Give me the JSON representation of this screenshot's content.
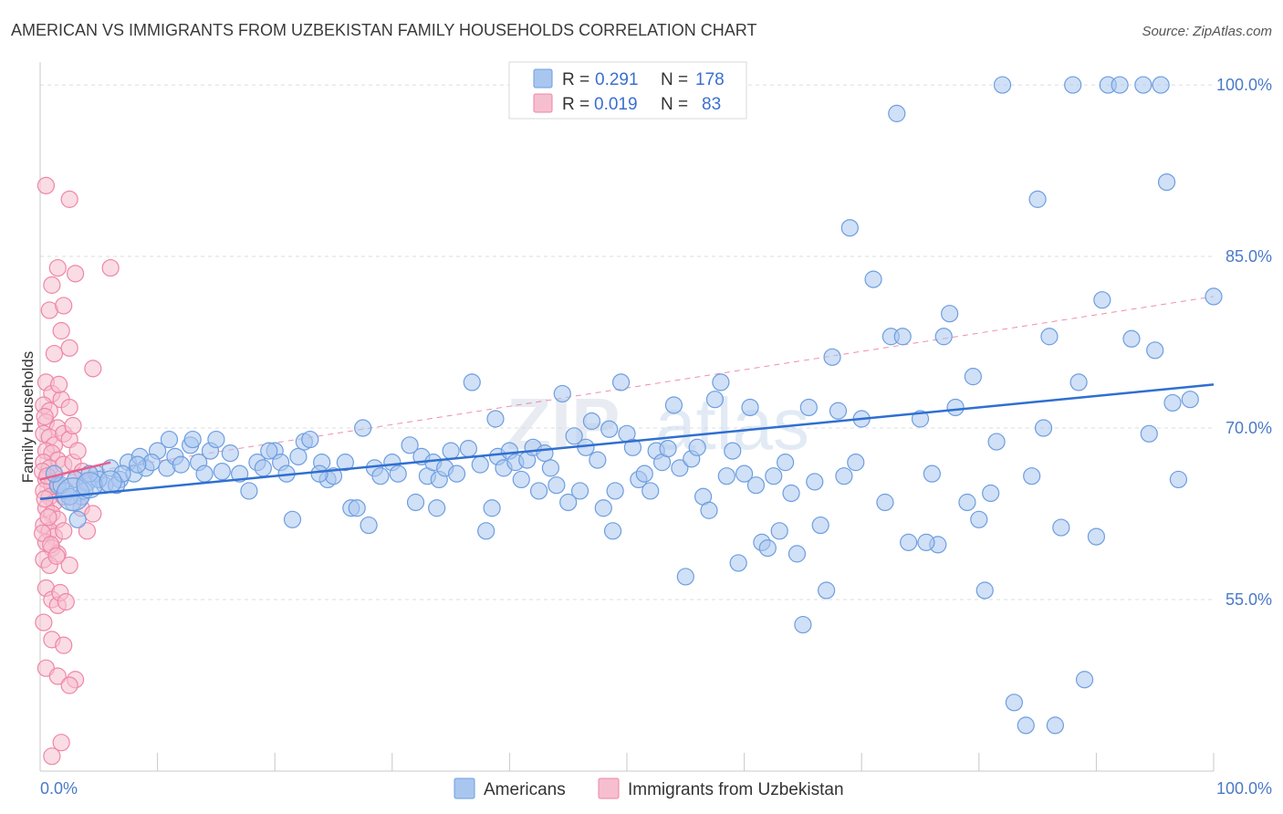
{
  "title": "AMERICAN VS IMMIGRANTS FROM UZBEKISTAN FAMILY HOUSEHOLDS CORRELATION CHART",
  "source": "Source: ZipAtlas.com",
  "watermark": {
    "zip": "ZIP",
    "atlas": "atlas"
  },
  "colors": {
    "blue_fill": "#a9c6ef",
    "blue_stroke": "#6d9ee0",
    "blue_line": "#2f6fd0",
    "pink_fill": "#f6bfd0",
    "pink_stroke": "#ef86a6",
    "pink_line": "#e8608c",
    "grid": "#dcdcdc",
    "tick_text": "#4a7ac8"
  },
  "legend": {
    "row1": {
      "r_label": "R =",
      "r_value": "0.291",
      "n_label": "N =",
      "n_value": "178"
    },
    "row2": {
      "r_label": "R =",
      "r_value": "0.019",
      "n_label": "N =",
      "n_value": "83"
    }
  },
  "chart_data": {
    "type": "scatter",
    "title": "AMERICAN VS IMMIGRANTS FROM UZBEKISTAN FAMILY HOUSEHOLDS CORRELATION CHART",
    "xlabel": "",
    "ylabel": "Family Households",
    "xlim": [
      0,
      100
    ],
    "ylim": [
      40,
      102
    ],
    "x_tick_labels": [
      "0.0%",
      "100.0%"
    ],
    "y_ticks": [
      55,
      70,
      85,
      100
    ],
    "y_tick_labels": [
      "55.0%",
      "70.0%",
      "85.0%",
      "100.0%"
    ],
    "grid": true,
    "legend_position": "top-center",
    "series": [
      {
        "name": "Americans",
        "color": "#a9c6ef",
        "r": 0.291,
        "n": 178,
        "trend": {
          "x": [
            0,
            100
          ],
          "y": [
            63.8,
            73.8
          ]
        },
        "points": [
          [
            1.5,
            65.0
          ],
          [
            2.2,
            64.5
          ],
          [
            3.0,
            65.5
          ],
          [
            3.5,
            64.0
          ],
          [
            4.0,
            65.2
          ],
          [
            4.8,
            66.0
          ],
          [
            5.5,
            65.0
          ],
          [
            6.0,
            66.5
          ],
          [
            6.8,
            65.5
          ],
          [
            7.5,
            67.0
          ],
          [
            8.0,
            66.0
          ],
          [
            8.5,
            67.5
          ],
          [
            9.0,
            66.5
          ],
          [
            10.0,
            68.0
          ],
          [
            10.8,
            66.5
          ],
          [
            11.5,
            67.5
          ],
          [
            12.0,
            66.8
          ],
          [
            12.8,
            68.5
          ],
          [
            13.5,
            67.0
          ],
          [
            14.0,
            66.0
          ],
          [
            14.5,
            68.0
          ],
          [
            15.5,
            66.2
          ],
          [
            16.2,
            67.8
          ],
          [
            17.0,
            66.0
          ],
          [
            17.8,
            64.5
          ],
          [
            18.5,
            67.0
          ],
          [
            19.0,
            66.5
          ],
          [
            20.0,
            68.0
          ],
          [
            20.5,
            67.0
          ],
          [
            21.0,
            66.0
          ],
          [
            22.0,
            67.5
          ],
          [
            22.5,
            68.8
          ],
          [
            23.0,
            69.0
          ],
          [
            24.0,
            67.0
          ],
          [
            24.5,
            65.5
          ],
          [
            25.0,
            65.8
          ],
          [
            26.0,
            67.0
          ],
          [
            26.5,
            63.0
          ],
          [
            27.5,
            70.0
          ],
          [
            28.0,
            61.5
          ],
          [
            28.5,
            66.5
          ],
          [
            29.0,
            65.8
          ],
          [
            30.0,
            67.0
          ],
          [
            30.5,
            66.0
          ],
          [
            31.5,
            68.5
          ],
          [
            32.0,
            63.5
          ],
          [
            32.5,
            67.5
          ],
          [
            33.0,
            65.8
          ],
          [
            33.5,
            67.0
          ],
          [
            34.0,
            65.5
          ],
          [
            34.5,
            66.5
          ],
          [
            35.0,
            68.0
          ],
          [
            35.5,
            66.0
          ],
          [
            36.5,
            68.2
          ],
          [
            36.8,
            74.0
          ],
          [
            37.5,
            66.8
          ],
          [
            38.0,
            61.0
          ],
          [
            38.5,
            63.0
          ],
          [
            39.0,
            67.5
          ],
          [
            39.5,
            66.5
          ],
          [
            40.0,
            68.0
          ],
          [
            40.5,
            67.0
          ],
          [
            41.0,
            65.5
          ],
          [
            41.5,
            67.2
          ],
          [
            42.0,
            68.3
          ],
          [
            42.5,
            64.5
          ],
          [
            43.0,
            67.8
          ],
          [
            43.5,
            66.5
          ],
          [
            44.0,
            65.0
          ],
          [
            44.5,
            73.0
          ],
          [
            45.0,
            63.5
          ],
          [
            45.5,
            69.3
          ],
          [
            46.0,
            64.5
          ],
          [
            46.5,
            68.3
          ],
          [
            47.0,
            70.6
          ],
          [
            47.5,
            67.2
          ],
          [
            48.0,
            63.0
          ],
          [
            48.5,
            69.9
          ],
          [
            49.0,
            64.5
          ],
          [
            49.5,
            74.0
          ],
          [
            50.0,
            69.5
          ],
          [
            50.5,
            68.3
          ],
          [
            51.0,
            65.5
          ],
          [
            51.5,
            66.0
          ],
          [
            52.0,
            64.5
          ],
          [
            52.5,
            68.0
          ],
          [
            53.0,
            67.0
          ],
          [
            53.5,
            68.2
          ],
          [
            54.0,
            72.0
          ],
          [
            54.5,
            66.5
          ],
          [
            55.0,
            57.0
          ],
          [
            55.5,
            67.3
          ],
          [
            56.0,
            68.3
          ],
          [
            56.5,
            64.0
          ],
          [
            57.0,
            62.8
          ],
          [
            57.5,
            72.5
          ],
          [
            58.0,
            74.0
          ],
          [
            58.5,
            65.8
          ],
          [
            59.0,
            68.0
          ],
          [
            59.5,
            58.2
          ],
          [
            60.0,
            66.0
          ],
          [
            60.5,
            71.8
          ],
          [
            61.0,
            65.0
          ],
          [
            61.5,
            60.0
          ],
          [
            62.0,
            59.5
          ],
          [
            62.5,
            65.8
          ],
          [
            63.0,
            61.0
          ],
          [
            63.5,
            67.0
          ],
          [
            64.0,
            64.3
          ],
          [
            64.5,
            59.0
          ],
          [
            65.0,
            52.8
          ],
          [
            65.5,
            71.8
          ],
          [
            66.0,
            65.3
          ],
          [
            66.5,
            61.5
          ],
          [
            67.0,
            55.8
          ],
          [
            67.5,
            76.2
          ],
          [
            68.0,
            71.5
          ],
          [
            68.5,
            65.8
          ],
          [
            69.0,
            87.5
          ],
          [
            69.5,
            67.0
          ],
          [
            70.0,
            70.8
          ],
          [
            71.0,
            83.0
          ],
          [
            72.0,
            63.5
          ],
          [
            72.5,
            78.0
          ],
          [
            73.0,
            97.5
          ],
          [
            73.5,
            78.0
          ],
          [
            74.0,
            60.0
          ],
          [
            75.0,
            70.8
          ],
          [
            76.0,
            66.0
          ],
          [
            76.5,
            59.8
          ],
          [
            77.0,
            78.0
          ],
          [
            77.5,
            80.0
          ],
          [
            78.0,
            71.8
          ],
          [
            79.0,
            63.5
          ],
          [
            79.5,
            74.5
          ],
          [
            80.0,
            62.0
          ],
          [
            80.5,
            55.8
          ],
          [
            81.0,
            64.3
          ],
          [
            81.5,
            68.8
          ],
          [
            82.0,
            100.0
          ],
          [
            83.0,
            46.0
          ],
          [
            84.0,
            44.0
          ],
          [
            84.5,
            65.8
          ],
          [
            85.0,
            90.0
          ],
          [
            85.5,
            70.0
          ],
          [
            86.0,
            78.0
          ],
          [
            86.5,
            44.0
          ],
          [
            87.0,
            61.3
          ],
          [
            88.0,
            100.0
          ],
          [
            88.5,
            74.0
          ],
          [
            89.0,
            48.0
          ],
          [
            90.0,
            60.5
          ],
          [
            90.5,
            81.2
          ],
          [
            91.0,
            100.0
          ],
          [
            92.0,
            100.0
          ],
          [
            93.0,
            77.8
          ],
          [
            94.0,
            100.0
          ],
          [
            94.5,
            69.5
          ],
          [
            95.0,
            76.8
          ],
          [
            95.5,
            100.0
          ],
          [
            96.0,
            91.5
          ],
          [
            96.5,
            72.2
          ],
          [
            98.0,
            72.5
          ],
          [
            100.0,
            81.5
          ],
          [
            97.0,
            65.5
          ],
          [
            75.5,
            60.0
          ],
          [
            48.8,
            61.0
          ],
          [
            38.8,
            70.8
          ],
          [
            33.8,
            63.0
          ],
          [
            27.0,
            63.0
          ],
          [
            23.8,
            66.0
          ],
          [
            21.5,
            62.0
          ],
          [
            19.5,
            68.0
          ],
          [
            15.0,
            69.0
          ],
          [
            13.0,
            69.0
          ],
          [
            11.0,
            69.0
          ],
          [
            9.5,
            67.0
          ],
          [
            3.8,
            64.5
          ],
          [
            2.8,
            63.5
          ],
          [
            6.5,
            65.0
          ],
          [
            7.0,
            66.0
          ],
          [
            8.3,
            66.8
          ],
          [
            5.0,
            65.5
          ],
          [
            4.2,
            66.0
          ],
          [
            3.2,
            62.0
          ],
          [
            1.8,
            65.0
          ],
          [
            2.5,
            64.0
          ],
          [
            1.2,
            66.0
          ]
        ]
      },
      {
        "name": "Immigrants from Uzbekistan",
        "color": "#f6bfd0",
        "r": 0.019,
        "n": 83,
        "trend": {
          "x": [
            0,
            6
          ],
          "y": [
            65.5,
            67.0
          ]
        },
        "trend_dashed": {
          "x": [
            0,
            100
          ],
          "y": [
            65.5,
            81.5
          ]
        },
        "points": [
          [
            0.5,
            91.2
          ],
          [
            2.5,
            90.0
          ],
          [
            1.5,
            84.0
          ],
          [
            3.0,
            83.5
          ],
          [
            6.0,
            84.0
          ],
          [
            1.0,
            82.5
          ],
          [
            0.8,
            80.3
          ],
          [
            2.0,
            80.7
          ],
          [
            1.8,
            78.5
          ],
          [
            1.2,
            76.5
          ],
          [
            2.5,
            77.0
          ],
          [
            4.5,
            75.2
          ],
          [
            0.5,
            74.0
          ],
          [
            1.0,
            73.0
          ],
          [
            1.8,
            72.5
          ],
          [
            0.3,
            72.0
          ],
          [
            0.8,
            71.5
          ],
          [
            2.5,
            71.8
          ],
          [
            0.5,
            70.5
          ],
          [
            1.5,
            70.0
          ],
          [
            0.3,
            69.5
          ],
          [
            0.8,
            69.2
          ],
          [
            1.2,
            68.5
          ],
          [
            2.0,
            69.5
          ],
          [
            2.5,
            69.0
          ],
          [
            0.5,
            68.0
          ],
          [
            1.0,
            67.8
          ],
          [
            1.5,
            67.2
          ],
          [
            0.3,
            67.0
          ],
          [
            0.8,
            66.5
          ],
          [
            1.2,
            66.0
          ],
          [
            2.0,
            66.8
          ],
          [
            0.5,
            65.5
          ],
          [
            1.0,
            65.0
          ],
          [
            1.5,
            64.8
          ],
          [
            0.3,
            64.5
          ],
          [
            0.8,
            64.0
          ],
          [
            1.2,
            63.5
          ],
          [
            2.0,
            64.0
          ],
          [
            0.5,
            63.0
          ],
          [
            1.0,
            62.5
          ],
          [
            1.5,
            62.0
          ],
          [
            0.3,
            61.5
          ],
          [
            0.8,
            61.0
          ],
          [
            1.2,
            60.5
          ],
          [
            2.0,
            61.0
          ],
          [
            0.5,
            60.0
          ],
          [
            1.0,
            59.5
          ],
          [
            1.5,
            59.0
          ],
          [
            0.3,
            58.5
          ],
          [
            0.8,
            58.0
          ],
          [
            2.5,
            58.0
          ],
          [
            0.5,
            56.0
          ],
          [
            1.0,
            55.0
          ],
          [
            1.5,
            54.5
          ],
          [
            0.3,
            53.0
          ],
          [
            1.0,
            51.5
          ],
          [
            2.0,
            51.0
          ],
          [
            0.5,
            49.0
          ],
          [
            1.5,
            48.3
          ],
          [
            3.0,
            48.0
          ],
          [
            2.5,
            47.5
          ],
          [
            1.8,
            42.5
          ],
          [
            1.0,
            41.3
          ],
          [
            4.0,
            61.0
          ],
          [
            3.5,
            63.0
          ],
          [
            3.0,
            65.5
          ],
          [
            2.8,
            67.0
          ],
          [
            3.2,
            68.0
          ],
          [
            4.5,
            62.5
          ],
          [
            0.2,
            66.2
          ],
          [
            0.6,
            65.8
          ],
          [
            0.4,
            63.8
          ],
          [
            0.7,
            62.2
          ],
          [
            0.2,
            60.8
          ],
          [
            0.9,
            59.8
          ],
          [
            1.4,
            58.8
          ],
          [
            1.7,
            55.6
          ],
          [
            2.2,
            54.8
          ],
          [
            0.4,
            71.0
          ],
          [
            1.6,
            73.8
          ],
          [
            2.8,
            70.2
          ],
          [
            3.6,
            66.2
          ]
        ]
      }
    ]
  },
  "axis": {
    "y_title": "Family Households",
    "x_min_label": "0.0%",
    "x_max_label": "100.0%"
  },
  "bottom_legend": {
    "item1": "Americans",
    "item2": "Immigrants from Uzbekistan"
  }
}
